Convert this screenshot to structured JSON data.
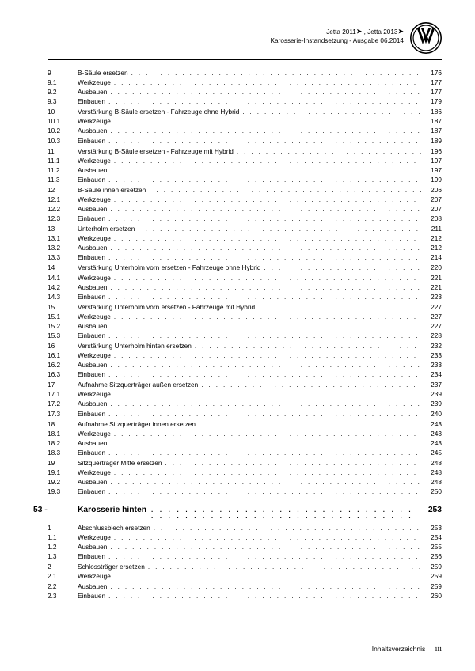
{
  "header": {
    "line1_a": "Jetta 2011",
    "line1_b": ", Jetta 2013",
    "line2": "Karosserie-Instandsetzung - Ausgabe 06.2014"
  },
  "footer": {
    "label": "Inhaltsverzeichnis",
    "page": "iii"
  },
  "section": {
    "num": "53 -",
    "title": "Karosserie hinten",
    "page": "253"
  },
  "groups_a": [
    {
      "head": [
        "9",
        "B-Säule ersetzen",
        "176"
      ],
      "rows": [
        [
          "9.1",
          "Werkzeuge",
          "177"
        ],
        [
          "9.2",
          "Ausbauen",
          "177"
        ],
        [
          "9.3",
          "Einbauen",
          "179"
        ]
      ]
    },
    {
      "head": [
        "10",
        "Verstärkung B-Säule ersetzen - Fahrzeuge ohne Hybrid",
        "186"
      ],
      "rows": [
        [
          "10.1",
          "Werkzeuge",
          "187"
        ],
        [
          "10.2",
          "Ausbauen",
          "187"
        ],
        [
          "10.3",
          "Einbauen",
          "189"
        ]
      ]
    },
    {
      "head": [
        "11",
        "Verstärkung B-Säule ersetzen - Fahrzeuge mit Hybrid",
        "196"
      ],
      "rows": [
        [
          "11.1",
          "Werkzeuge",
          "197"
        ],
        [
          "11.2",
          "Ausbauen",
          "197"
        ],
        [
          "11.3",
          "Einbauen",
          "199"
        ]
      ]
    },
    {
      "head": [
        "12",
        "B-Säule innen ersetzen",
        "206"
      ],
      "rows": [
        [
          "12.1",
          "Werkzeuge",
          "207"
        ],
        [
          "12.2",
          "Ausbauen",
          "207"
        ],
        [
          "12.3",
          "Einbauen",
          "208"
        ]
      ]
    },
    {
      "head": [
        "13",
        "Unterholm ersetzen",
        "211"
      ],
      "rows": [
        [
          "13.1",
          "Werkzeuge",
          "212"
        ],
        [
          "13.2",
          "Ausbauen",
          "212"
        ],
        [
          "13.3",
          "Einbauen",
          "214"
        ]
      ]
    },
    {
      "head": [
        "14",
        "Verstärkung Unterholm vorn ersetzen - Fahrzeuge ohne Hybrid",
        "220"
      ],
      "rows": [
        [
          "14.1",
          "Werkzeuge",
          "221"
        ],
        [
          "14.2",
          "Ausbauen",
          "221"
        ],
        [
          "14.3",
          "Einbauen",
          "223"
        ]
      ]
    },
    {
      "head": [
        "15",
        "Verstärkung Unterholm vorn ersetzen - Fahrzeuge mit Hybrid",
        "227"
      ],
      "rows": [
        [
          "15.1",
          "Werkzeuge",
          "227"
        ],
        [
          "15.2",
          "Ausbauen",
          "227"
        ],
        [
          "15.3",
          "Einbauen",
          "228"
        ]
      ]
    },
    {
      "head": [
        "16",
        "Verstärkung Unterholm hinten ersetzen",
        "232"
      ],
      "rows": [
        [
          "16.1",
          "Werkzeuge",
          "233"
        ],
        [
          "16.2",
          "Ausbauen",
          "233"
        ],
        [
          "16.3",
          "Einbauen",
          "234"
        ]
      ]
    },
    {
      "head": [
        "17",
        "Aufnahme Sitzquerträger außen ersetzen",
        "237"
      ],
      "rows": [
        [
          "17.1",
          "Werkzeuge",
          "239"
        ],
        [
          "17.2",
          "Ausbauen",
          "239"
        ],
        [
          "17.3",
          "Einbauen",
          "240"
        ]
      ]
    },
    {
      "head": [
        "18",
        "Aufnahme Sitzquerträger innen ersetzen",
        "243"
      ],
      "rows": [
        [
          "18.1",
          "Werkzeuge",
          "243"
        ],
        [
          "18.2",
          "Ausbauen",
          "243"
        ],
        [
          "18.3",
          "Einbauen",
          "245"
        ]
      ]
    },
    {
      "head": [
        "19",
        "Sitzquerträger Mitte ersetzen",
        "248"
      ],
      "rows": [
        [
          "19.1",
          "Werkzeuge",
          "248"
        ],
        [
          "19.2",
          "Ausbauen",
          "248"
        ],
        [
          "19.3",
          "Einbauen",
          "250"
        ]
      ]
    }
  ],
  "groups_b": [
    {
      "head": [
        "1",
        "Abschlussblech ersetzen",
        "253"
      ],
      "rows": [
        [
          "1.1",
          "Werkzeuge",
          "254"
        ],
        [
          "1.2",
          "Ausbauen",
          "255"
        ],
        [
          "1.3",
          "Einbauen",
          "256"
        ]
      ]
    },
    {
      "head": [
        "2",
        "Schlossträger ersetzen",
        "259"
      ],
      "rows": [
        [
          "2.1",
          "Werkzeuge",
          "259"
        ],
        [
          "2.2",
          "Ausbauen",
          "259"
        ],
        [
          "2.3",
          "Einbauen",
          "260"
        ]
      ]
    }
  ]
}
